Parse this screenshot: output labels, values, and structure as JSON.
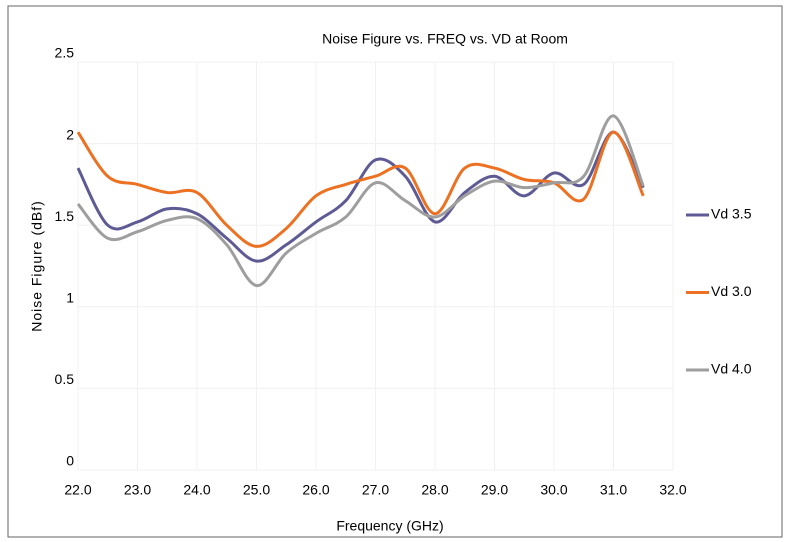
{
  "chart_data": {
    "type": "line",
    "title": "Noise Figure  vs. FREQ  vs. VD  at Room",
    "x_label": "Frequency (GHz)",
    "y_label": "Noise Figure (dBf)",
    "x": [
      22,
      22.5,
      23,
      23.5,
      24,
      24.5,
      25,
      25.5,
      26,
      26.5,
      27,
      27.5,
      28,
      28.5,
      29,
      29.5,
      30,
      30.5,
      31,
      31.5
    ],
    "series": [
      {
        "name": "Vd 3.5",
        "color": "#5e5b94",
        "values": [
          1.85,
          1.5,
          1.52,
          1.6,
          1.57,
          1.42,
          1.28,
          1.38,
          1.52,
          1.65,
          1.9,
          1.8,
          1.52,
          1.7,
          1.8,
          1.68,
          1.82,
          1.75,
          2.07,
          1.73
        ]
      },
      {
        "name": "Vd 3.0",
        "color": "#ec7122",
        "values": [
          2.07,
          1.8,
          1.75,
          1.7,
          1.7,
          1.5,
          1.37,
          1.48,
          1.68,
          1.75,
          1.8,
          1.85,
          1.57,
          1.85,
          1.85,
          1.78,
          1.76,
          1.66,
          2.07,
          1.68
        ]
      },
      {
        "name": "Vd 4.0",
        "color": "#9e9e9e",
        "values": [
          1.63,
          1.42,
          1.46,
          1.53,
          1.54,
          1.38,
          1.13,
          1.33,
          1.45,
          1.55,
          1.76,
          1.65,
          1.55,
          1.68,
          1.77,
          1.73,
          1.76,
          1.8,
          2.17,
          1.74
        ]
      }
    ],
    "xlim": [
      22,
      32
    ],
    "xticks": [
      {
        "value": 22,
        "label": "22.0"
      },
      {
        "value": 23,
        "label": "23.0"
      },
      {
        "value": 24,
        "label": "24.0"
      },
      {
        "value": 25,
        "label": "25.0"
      },
      {
        "value": 26,
        "label": "26.0"
      },
      {
        "value": 27,
        "label": "27.0"
      },
      {
        "value": 28,
        "label": "28.0"
      },
      {
        "value": 29,
        "label": "29.0"
      },
      {
        "value": 30,
        "label": "30.0"
      },
      {
        "value": 31,
        "label": "31.0"
      },
      {
        "value": 32,
        "label": "32.0"
      }
    ],
    "ylim": [
      0,
      2.5
    ],
    "yticks": [
      0,
      0.5,
      1,
      1.5,
      2,
      2.5
    ],
    "grid": true,
    "legend": "right"
  }
}
